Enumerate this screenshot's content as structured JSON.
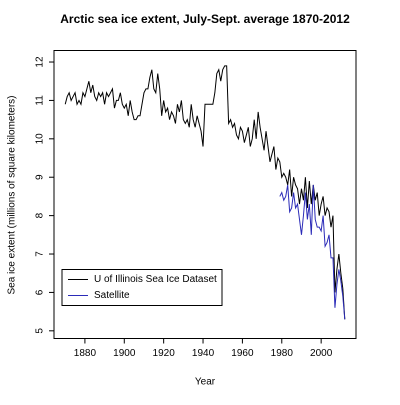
{
  "chart_data": {
    "type": "line",
    "title": "Arctic sea ice extent, July-Sept. average 1870-2012",
    "xlabel": "Year",
    "ylabel": "Sea ice extent (millions of square kilometers)",
    "x": [
      1870,
      1871,
      1872,
      1873,
      1874,
      1875,
      1876,
      1877,
      1878,
      1879,
      1880,
      1881,
      1882,
      1883,
      1884,
      1885,
      1886,
      1887,
      1888,
      1889,
      1890,
      1891,
      1892,
      1893,
      1894,
      1895,
      1896,
      1897,
      1898,
      1899,
      1900,
      1901,
      1902,
      1903,
      1904,
      1905,
      1906,
      1907,
      1908,
      1909,
      1910,
      1911,
      1912,
      1913,
      1914,
      1915,
      1916,
      1917,
      1918,
      1919,
      1920,
      1921,
      1922,
      1923,
      1924,
      1925,
      1926,
      1927,
      1928,
      1929,
      1930,
      1931,
      1932,
      1933,
      1934,
      1935,
      1936,
      1937,
      1938,
      1939,
      1940,
      1941,
      1942,
      1943,
      1944,
      1945,
      1946,
      1947,
      1948,
      1949,
      1950,
      1951,
      1952,
      1953,
      1954,
      1955,
      1956,
      1957,
      1958,
      1959,
      1960,
      1961,
      1962,
      1963,
      1964,
      1965,
      1966,
      1967,
      1968,
      1969,
      1970,
      1971,
      1972,
      1973,
      1974,
      1975,
      1976,
      1977,
      1978,
      1979,
      1980,
      1981,
      1982,
      1983,
      1984,
      1985,
      1986,
      1987,
      1988,
      1989,
      1990,
      1991,
      1992,
      1993,
      1994,
      1995,
      1996,
      1997,
      1998,
      1999,
      2000,
      2001,
      2002,
      2003,
      2004,
      2005,
      2006,
      2007,
      2008,
      2009,
      2010,
      2011,
      2012
    ],
    "series": [
      {
        "name": "U of Illinois Sea Ice Dataset",
        "color": "#000000",
        "values": [
          10.9,
          11.1,
          11.2,
          11.0,
          11.1,
          11.2,
          10.9,
          11.0,
          10.9,
          11.2,
          11.1,
          11.3,
          11.5,
          11.2,
          11.4,
          11.1,
          11.0,
          11.2,
          11.1,
          11.2,
          10.9,
          11.2,
          11.1,
          11.2,
          11.3,
          10.8,
          11.0,
          11.0,
          11.2,
          10.9,
          10.8,
          10.9,
          10.6,
          11.0,
          10.7,
          10.5,
          10.5,
          10.6,
          10.6,
          10.9,
          11.2,
          11.3,
          11.3,
          11.6,
          11.8,
          11.3,
          11.2,
          11.7,
          11.3,
          10.6,
          11.0,
          10.7,
          10.8,
          10.5,
          10.7,
          10.6,
          10.4,
          10.9,
          10.7,
          11.0,
          10.5,
          10.4,
          10.5,
          10.3,
          10.9,
          10.5,
          10.3,
          10.6,
          10.4,
          10.2,
          9.8,
          10.9,
          10.9,
          10.9,
          10.9,
          10.9,
          11.2,
          11.7,
          11.8,
          11.5,
          11.8,
          11.9,
          11.9,
          10.4,
          10.5,
          10.3,
          10.4,
          10.1,
          10.0,
          10.3,
          10.2,
          9.9,
          10.1,
          10.3,
          9.8,
          10.0,
          10.5,
          10.0,
          10.7,
          10.3,
          10.0,
          9.7,
          10.2,
          9.8,
          9.4,
          9.6,
          9.8,
          9.2,
          9.5,
          9.4,
          9.0,
          9.1,
          9.0,
          8.8,
          9.2,
          8.5,
          9.0,
          8.8,
          8.7,
          8.3,
          8.7,
          8.4,
          9.0,
          8.2,
          8.9,
          8.3,
          8.8,
          8.4,
          8.6,
          8.0,
          8.3,
          8.5,
          8.0,
          8.2,
          8.1,
          7.7,
          8.0,
          6.0,
          6.6,
          7.0,
          6.5,
          6.1,
          5.3
        ]
      },
      {
        "name": "Satellite",
        "color": "#2b2bb8",
        "values": [
          null,
          null,
          null,
          null,
          null,
          null,
          null,
          null,
          null,
          null,
          null,
          null,
          null,
          null,
          null,
          null,
          null,
          null,
          null,
          null,
          null,
          null,
          null,
          null,
          null,
          null,
          null,
          null,
          null,
          null,
          null,
          null,
          null,
          null,
          null,
          null,
          null,
          null,
          null,
          null,
          null,
          null,
          null,
          null,
          null,
          null,
          null,
          null,
          null,
          null,
          null,
          null,
          null,
          null,
          null,
          null,
          null,
          null,
          null,
          null,
          null,
          null,
          null,
          null,
          null,
          null,
          null,
          null,
          null,
          null,
          null,
          null,
          null,
          null,
          null,
          null,
          null,
          null,
          null,
          null,
          null,
          null,
          null,
          null,
          null,
          null,
          null,
          null,
          null,
          null,
          null,
          null,
          null,
          null,
          null,
          null,
          null,
          null,
          null,
          null,
          null,
          null,
          null,
          null,
          null,
          null,
          null,
          null,
          null,
          8.5,
          8.6,
          8.4,
          8.5,
          8.8,
          8.1,
          8.2,
          8.6,
          8.2,
          8.3,
          7.9,
          7.5,
          8.0,
          8.6,
          7.9,
          8.3,
          7.5,
          8.8,
          7.9,
          7.7,
          7.7,
          7.6,
          8.0,
          7.2,
          7.3,
          7.5,
          6.9,
          6.9,
          5.6,
          6.2,
          6.6,
          6.3,
          5.9,
          5.3
        ]
      }
    ],
    "xlim": [
      1864.3,
      2017.7
    ],
    "xticks": [
      1880,
      1900,
      1920,
      1940,
      1960,
      1980,
      2000
    ],
    "ylim": [
      4.8,
      12.3
    ],
    "yticks": [
      5,
      6,
      7,
      8,
      9,
      10,
      11,
      12
    ],
    "legend": "bottom-left",
    "grid": false
  }
}
